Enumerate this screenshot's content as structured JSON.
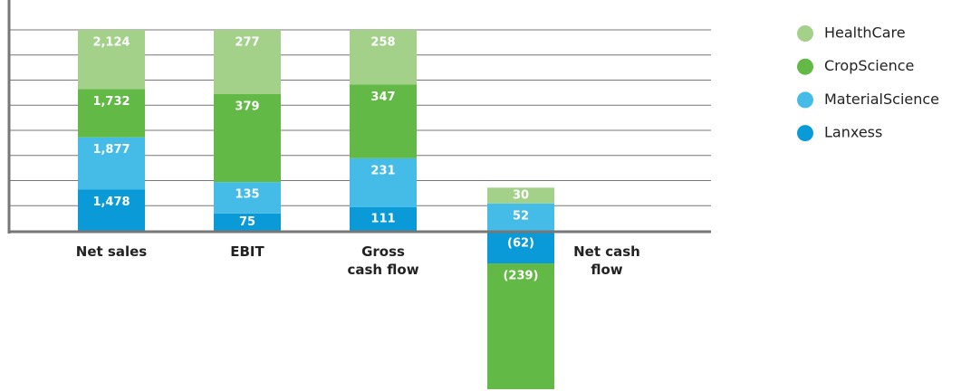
{
  "chart_data": {
    "type": "bar",
    "stacked": true,
    "categories": [
      "Net sales",
      "EBIT",
      "Gross cash flow",
      "Net cash flow"
    ],
    "series": [
      {
        "name": "HealthCare",
        "color": "#a3d18a",
        "values": [
          2124,
          277,
          258,
          30
        ],
        "value_labels": [
          "2,124",
          "277",
          "258",
          "30"
        ]
      },
      {
        "name": "CropScience",
        "color": "#62b946",
        "values": [
          1732,
          379,
          347,
          -239
        ],
        "value_labels": [
          "1,732",
          "379",
          "347",
          "(239)"
        ]
      },
      {
        "name": "MaterialScience",
        "color": "#45bce8",
        "values": [
          1877,
          135,
          231,
          52
        ],
        "value_labels": [
          "1,877",
          "135",
          "231",
          "52"
        ]
      },
      {
        "name": "Lanxess",
        "color": "#0a9ad7",
        "values": [
          1478,
          75,
          111,
          -62
        ],
        "value_labels": [
          "1,478",
          "75",
          "111",
          "(62)"
        ]
      }
    ],
    "grid": true
  }
}
